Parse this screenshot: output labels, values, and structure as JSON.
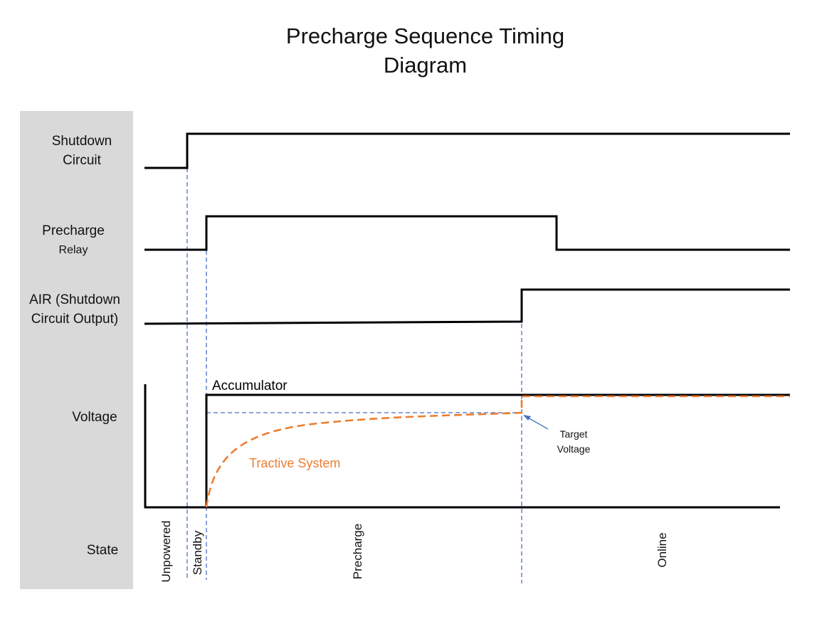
{
  "title": {
    "line1": "Precharge Sequence Timing",
    "line2": "Diagram"
  },
  "rows": {
    "shutdown": {
      "line1": "Shutdown",
      "line2": "Circuit"
    },
    "precharge_relay": {
      "line1": "Precharge",
      "line2": "Relay"
    },
    "air": {
      "line1": "AIR  (Shutdown",
      "line2": "Circuit Output)"
    },
    "voltage": {
      "label": "Voltage"
    },
    "state": {
      "label": "State"
    }
  },
  "annotations": {
    "accumulator": "Accumulator",
    "tractive_system": "Tractive System",
    "target_voltage_line1": "Target",
    "target_voltage_line2": "Voltage"
  },
  "states": [
    "Unpowered",
    "Standby",
    "Precharge",
    "Online"
  ],
  "colors": {
    "signal": "#000000",
    "marker": "#4472c4",
    "tractive": "#ed7d31",
    "panel": "#d9d9d9"
  }
}
